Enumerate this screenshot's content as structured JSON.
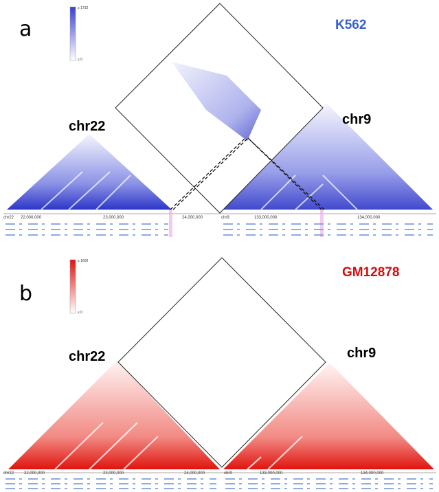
{
  "panels": [
    {
      "label": "a",
      "cell_line": "K562",
      "left_chrom": "chr22",
      "right_chrom": "chr9",
      "colorbar": {
        "max": "≥ 1732",
        "min": "≤ 0"
      },
      "axis": {
        "left_name": "chr22",
        "left_ticks": [
          "22,000,000",
          "23,000,000",
          "24,000,000"
        ],
        "right_name": "chr9",
        "right_ticks": [
          "133,000,000",
          "134,000,000"
        ]
      }
    },
    {
      "label": "b",
      "cell_line": "GM12878",
      "left_chrom": "chr22",
      "right_chrom": "chr9",
      "colorbar": {
        "max": "≥ 1600",
        "min": "≤ 0"
      },
      "axis": {
        "left_name": "chr22",
        "left_ticks": [
          "22,000,000",
          "23,000,000",
          "24,000,000"
        ],
        "right_name": "chr9",
        "right_ticks": [
          "133,000,000",
          "134,000,000"
        ]
      }
    }
  ]
}
